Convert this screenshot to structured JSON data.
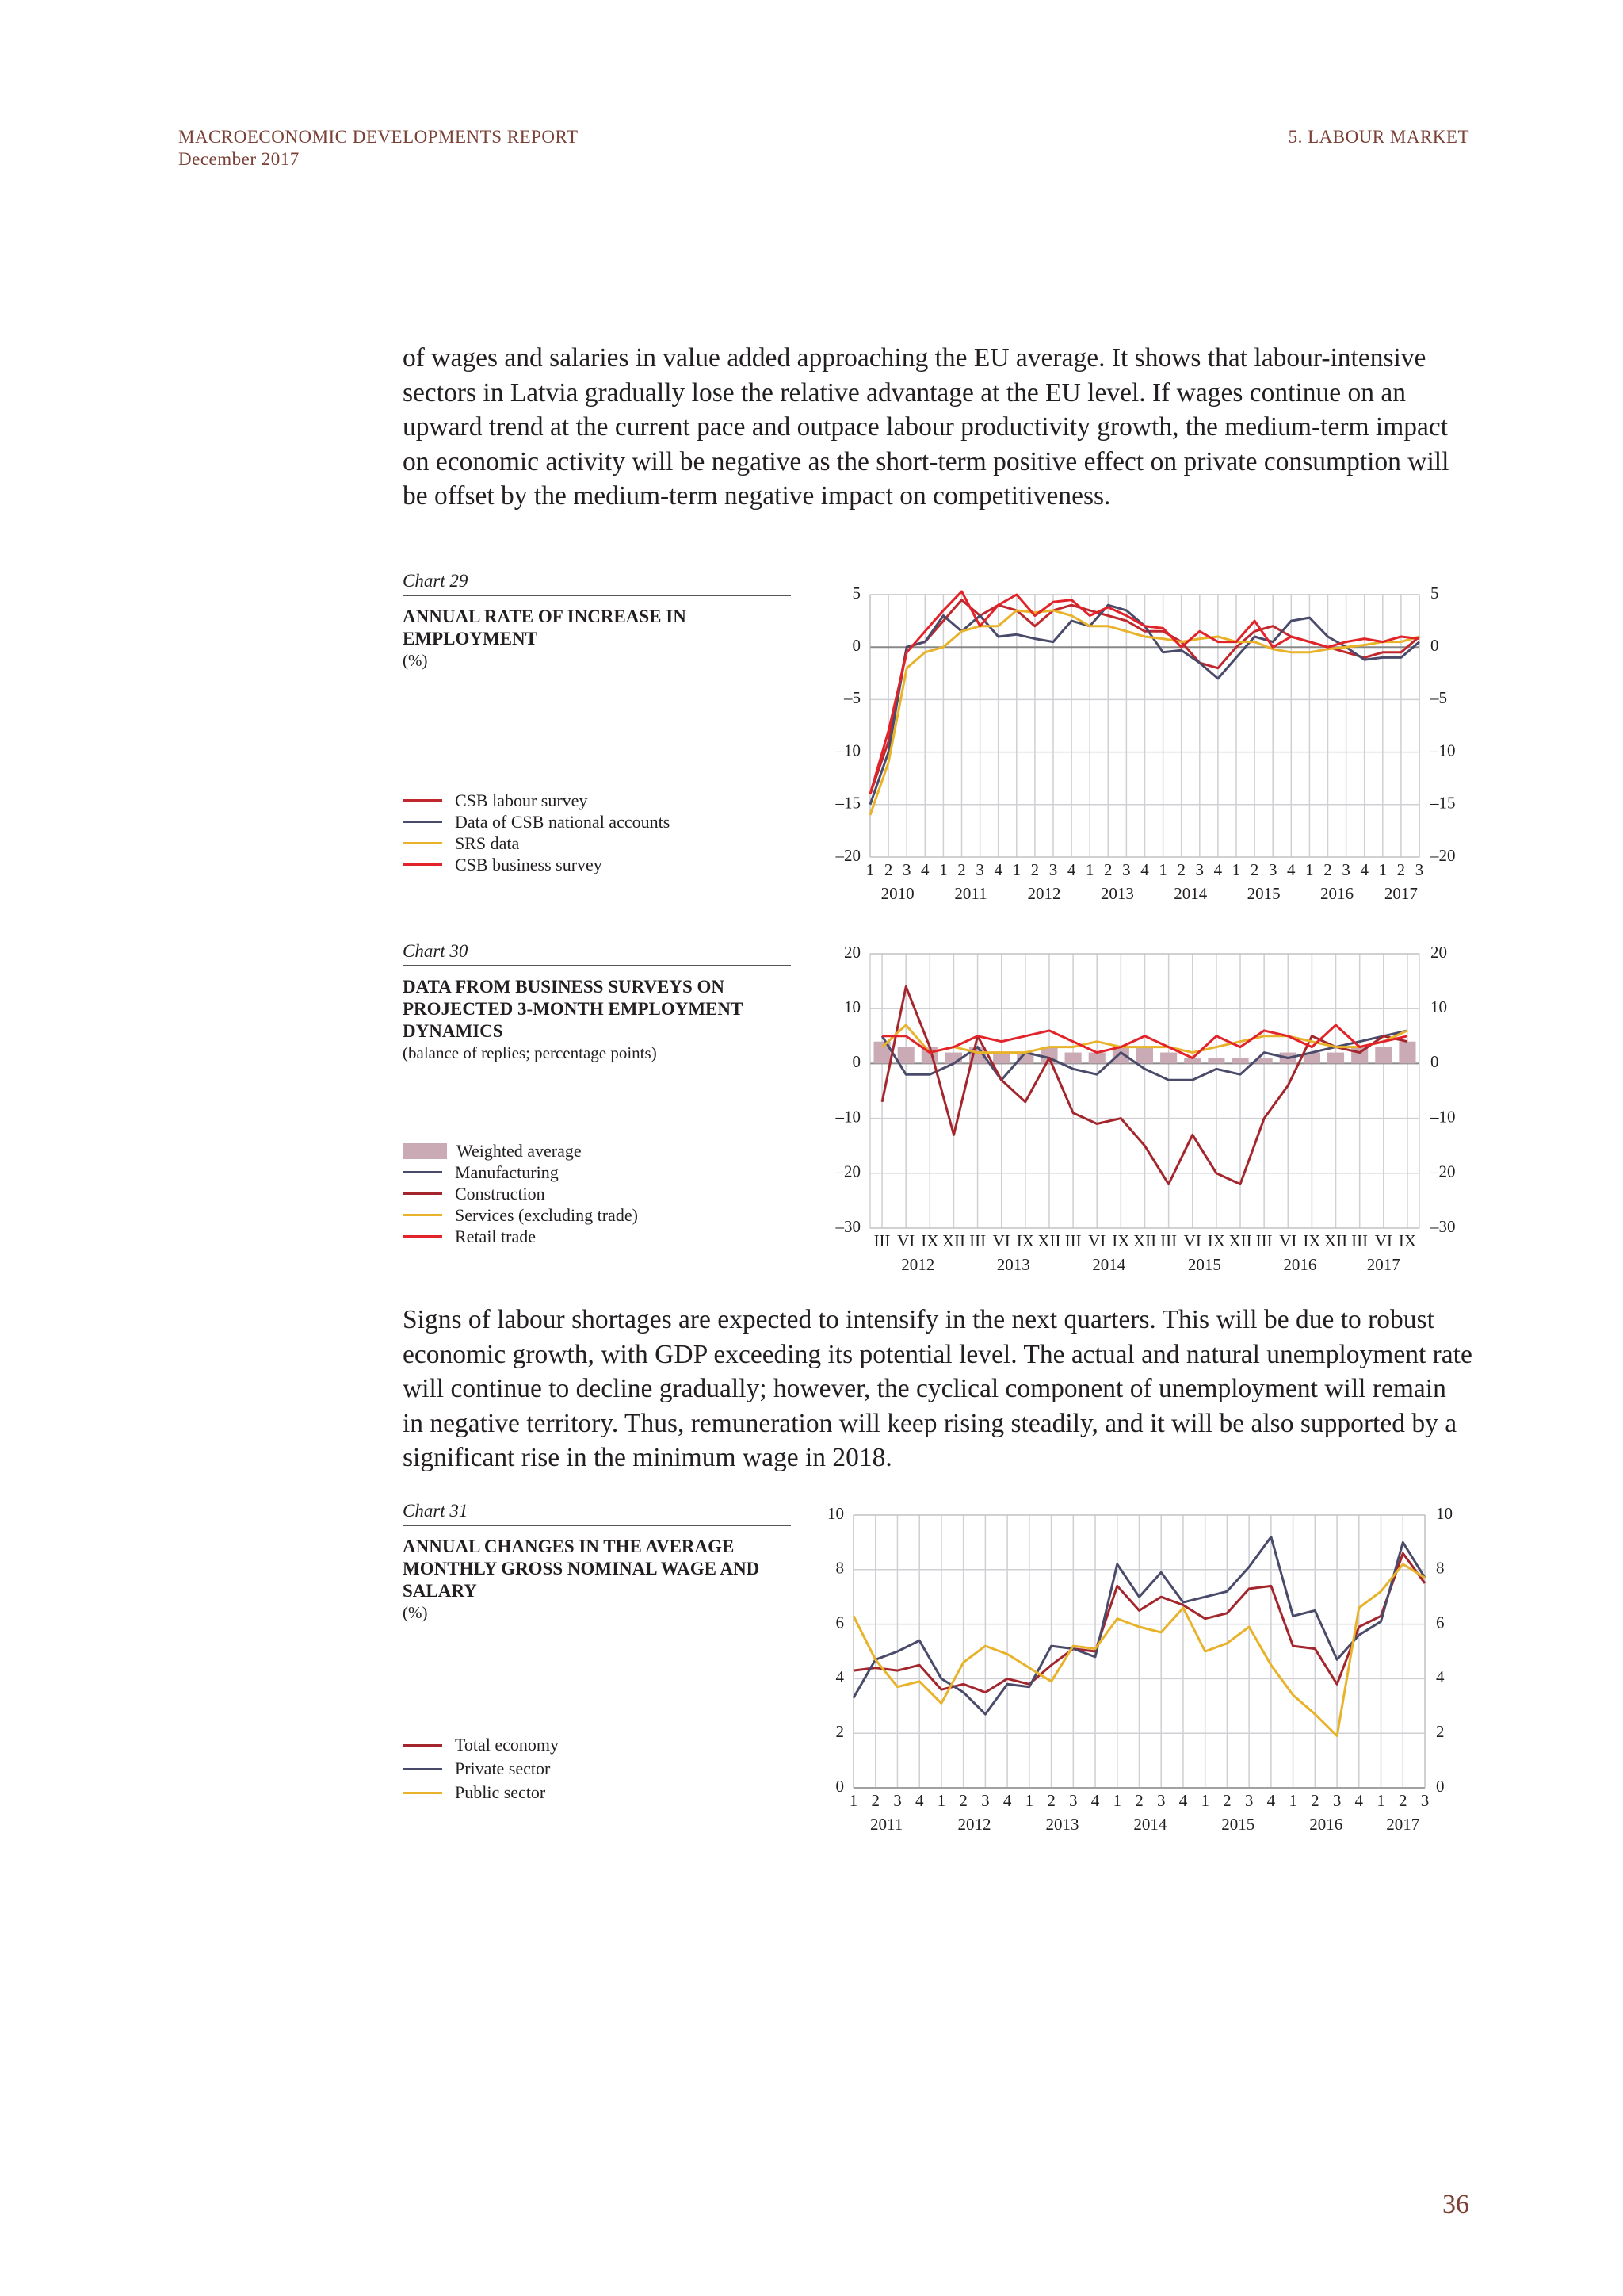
{
  "header": {
    "report": "MACROECONOMIC DEVELOPMENTS REPORT",
    "date": "December 2017",
    "section": "5. LABOUR MARKET"
  },
  "paragraphs": [
    "of wages and salaries in value added approaching the EU average. It shows that labour-intensive sectors in Latvia gradually lose the relative advantage at the EU level. If wages continue on an upward trend at the current pace and outpace labour productivity growth, the medium-term impact on economic activity will be negative as the short-term positive effect on private consumption will be offset by the medium-term negative impact on competitiveness.",
    "Signs of labour shortages are expected to intensify in the next quarters. This will be due to robust economic growth, with GDP exceeding its potential level. The actual and natural unemployment rate will continue to decline gradually; however, the cyclical component of unemployment will remain in negative territory. Thus, remuneration will keep rising steadily, and it will be also supported by a significant rise in the minimum wage in 2018."
  ],
  "page_number": "36",
  "chart_data": [
    {
      "type": "line",
      "label": "Chart 29",
      "title": "ANNUAL RATE OF INCREASE IN EMPLOYMENT",
      "unit": "(%)",
      "categories": [
        "1",
        "2",
        "3",
        "4",
        "1",
        "2",
        "3",
        "4",
        "1",
        "2",
        "3",
        "4",
        "1",
        "2",
        "3",
        "4",
        "1",
        "2",
        "3",
        "4",
        "1",
        "2",
        "3",
        "4",
        "1",
        "2",
        "3",
        "4",
        "1",
        "2",
        "3"
      ],
      "year_labels": [
        "2010",
        "2011",
        "2012",
        "2013",
        "2014",
        "2015",
        "2016",
        "2017"
      ],
      "ylim": [
        -20,
        5
      ],
      "grid": true,
      "yticks": [
        {
          "value": -20,
          "label": "–20"
        },
        {
          "value": -15,
          "label": "–15"
        },
        {
          "value": -10,
          "label": "–10"
        },
        {
          "value": -5,
          "label": "–5"
        },
        0,
        5
      ],
      "series": [
        {
          "name": "CSB labour survey",
          "color": "#c0282d",
          "values": [
            -14,
            -9,
            0,
            0.5,
            2.5,
            4.5,
            3,
            4,
            3.5,
            2,
            3.5,
            4,
            3.5,
            3,
            2.5,
            1.5,
            1.5,
            0.5,
            -1.5,
            -2,
            0,
            1.5,
            2,
            1,
            0.5,
            0,
            -0.5,
            -1,
            -0.5,
            -0.5,
            1
          ]
        },
        {
          "name": "Data of CSB national accounts",
          "color": "#4a4a6a",
          "values": [
            -15,
            -10,
            0,
            0.5,
            3,
            1.5,
            3,
            1,
            1.2,
            0.8,
            0.5,
            2.5,
            2,
            4,
            3.5,
            2,
            -0.5,
            -0.3,
            -1.5,
            -3,
            -1,
            1,
            0.5,
            2.5,
            2.8,
            1,
            0,
            -1.2,
            -1,
            -1,
            0.5
          ]
        },
        {
          "name": "SRS data",
          "color": "#e8b32a",
          "values": [
            -16,
            -11,
            -2,
            -0.5,
            0,
            1.5,
            2,
            2,
            3.5,
            3.3,
            3.5,
            3,
            2,
            2,
            1.5,
            1,
            0.8,
            0.5,
            0.8,
            1,
            0.5,
            0.5,
            -0.2,
            -0.5,
            -0.5,
            -0.2,
            0,
            0.2,
            0.5,
            0.5,
            1
          ]
        },
        {
          "name": "CSB business survey",
          "color": "#e2232a",
          "values": [
            -14,
            -8,
            -0.5,
            1.5,
            3.5,
            5.3,
            2,
            4,
            5,
            3,
            4.3,
            4.5,
            3,
            3.8,
            3,
            2,
            1.8,
            0,
            1.5,
            0.5,
            0.5,
            2.5,
            0,
            1,
            0.5,
            0,
            0.5,
            0.8,
            0.5,
            1,
            0.8
          ]
        }
      ]
    },
    {
      "type": "line",
      "band": true,
      "label": "Chart 30",
      "title": "DATA FROM BUSINESS SURVEYS ON PROJECTED 3-MONTH EMPLOYMENT DYNAMICS",
      "unit": "(balance of replies; percentage points)",
      "categories": [
        "III",
        "VI",
        "IX",
        "XII",
        "III",
        "VI",
        "IX",
        "XII",
        "III",
        "VI",
        "IX",
        "XII",
        "III",
        "VI",
        "IX",
        "XII",
        "III",
        "VI",
        "IX",
        "XII",
        "III",
        "VI",
        "IX"
      ],
      "year_labels": [
        "2012",
        "2013",
        "2014",
        "2015",
        "2016",
        "2017"
      ],
      "ylim": [
        -30,
        20
      ],
      "grid": true,
      "yticks": [
        {
          "value": -30,
          "label": "–30"
        },
        {
          "value": -20,
          "label": "–20"
        },
        {
          "value": -10,
          "label": "–10"
        },
        0,
        10,
        20
      ],
      "series": [
        {
          "name": "Weighted average",
          "type": "bar",
          "color": "#c9aab5",
          "values": [
            4,
            3,
            3,
            2,
            3,
            2,
            2,
            3,
            2,
            2,
            3,
            3,
            2,
            1,
            1,
            1,
            1,
            2,
            2,
            2,
            3,
            3,
            4
          ]
        },
        {
          "name": "Manufacturing",
          "color": "#4a4a6a",
          "values": [
            5,
            -2,
            -2,
            0,
            3,
            -3,
            2,
            1,
            -1,
            -2,
            2,
            -1,
            -3,
            -3,
            -1,
            -2,
            2,
            1,
            2,
            3,
            4,
            5,
            6
          ]
        },
        {
          "name": "Construction",
          "color": "#a3262d",
          "values": [
            -7,
            14,
            3,
            -13,
            5,
            -3,
            -7,
            1,
            -9,
            -11,
            -10,
            -15,
            -22,
            -13,
            -20,
            -22,
            -10,
            -4,
            5,
            3,
            2,
            5,
            4
          ]
        },
        {
          "name": "Services (excluding trade)",
          "color": "#e8b32a",
          "values": [
            3,
            7,
            2,
            3,
            2,
            2,
            2,
            3,
            3,
            4,
            3,
            3,
            3,
            2,
            3,
            4,
            5,
            5,
            4,
            3,
            3,
            4,
            6
          ]
        },
        {
          "name": "Retail trade",
          "color": "#e2232a",
          "values": [
            5,
            5,
            2,
            3,
            5,
            4,
            5,
            6,
            4,
            2,
            3,
            5,
            3,
            1,
            5,
            3,
            6,
            5,
            3,
            7,
            3,
            4,
            5
          ]
        }
      ]
    },
    {
      "type": "line",
      "label": "Chart 31",
      "title": "ANNUAL CHANGES IN THE AVERAGE MONTHLY GROSS NOMINAL WAGE AND SALARY",
      "unit": "(%)",
      "categories": [
        "1",
        "2",
        "3",
        "4",
        "1",
        "2",
        "3",
        "4",
        "1",
        "2",
        "3",
        "4",
        "1",
        "2",
        "3",
        "4",
        "1",
        "2",
        "3",
        "4",
        "1",
        "2",
        "3",
        "4",
        "1",
        "2",
        "3"
      ],
      "year_labels": [
        "2011",
        "2012",
        "2013",
        "2014",
        "2015",
        "2016",
        "2017"
      ],
      "ylim": [
        0,
        10
      ],
      "grid": true,
      "yticks": [
        0,
        2,
        4,
        6,
        8,
        10
      ],
      "series": [
        {
          "name": "Total economy",
          "color": "#a3262d",
          "values": [
            4.3,
            4.4,
            4.3,
            4.5,
            3.6,
            3.8,
            3.5,
            4,
            3.8,
            4.5,
            5.1,
            5,
            7.4,
            6.5,
            7,
            6.7,
            6.2,
            6.4,
            7.3,
            7.4,
            5.2,
            5.1,
            3.8,
            5.9,
            6.3,
            8.6,
            7.5
          ]
        },
        {
          "name": "Private sector",
          "color": "#4a4a6a",
          "values": [
            3.3,
            4.7,
            5,
            5.4,
            4,
            3.5,
            2.7,
            3.8,
            3.7,
            5.2,
            5.1,
            4.8,
            8.2,
            7,
            7.9,
            6.8,
            7,
            7.2,
            8.1,
            9.2,
            6.3,
            6.5,
            4.7,
            5.6,
            6.1,
            9,
            7.7
          ]
        },
        {
          "name": "Public sector",
          "color": "#e8b32a",
          "values": [
            6.3,
            4.7,
            3.7,
            3.9,
            3.1,
            4.6,
            5.2,
            4.9,
            4.4,
            3.9,
            5.2,
            5.1,
            6.2,
            5.9,
            5.7,
            6.6,
            5,
            5.3,
            5.9,
            4.5,
            3.4,
            2.7,
            1.9,
            6.6,
            7.2,
            8.2,
            7.7
          ]
        }
      ]
    }
  ]
}
